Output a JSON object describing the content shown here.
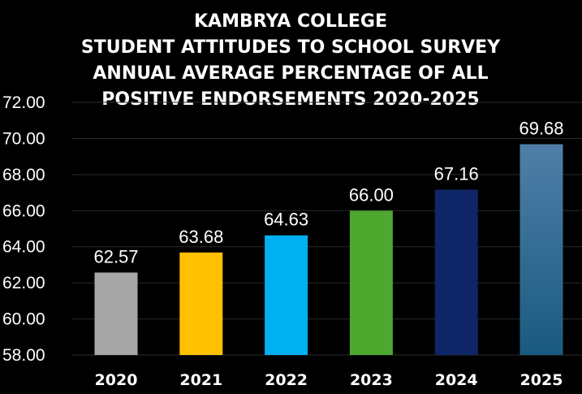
{
  "chart_data": {
    "type": "bar",
    "title_lines": [
      "KAMBRYA COLLEGE",
      "STUDENT ATTITUDES TO SCHOOL SURVEY",
      "ANNUAL AVERAGE PERCENTAGE OF ALL",
      "POSITIVE ENDORSEMENTS 2020-2025"
    ],
    "categories": [
      "2020",
      "2021",
      "2022",
      "2023",
      "2024",
      "2025"
    ],
    "values": [
      62.57,
      63.68,
      64.63,
      66.0,
      67.16,
      69.68
    ],
    "value_labels": [
      "62.57",
      "63.68",
      "64.63",
      "66.00",
      "67.16",
      "69.68"
    ],
    "colors": [
      "#a6a6a6",
      "#ffc000",
      "#00b0f0",
      "#4ea72e",
      "#0e2668",
      "#2f6690"
    ],
    "ylim": [
      58,
      72
    ],
    "yticks": [
      "58.00",
      "60.00",
      "62.00",
      "64.00",
      "66.00",
      "68.00",
      "70.00",
      "72.00"
    ],
    "grid": true,
    "xlabel": "",
    "ylabel": ""
  }
}
